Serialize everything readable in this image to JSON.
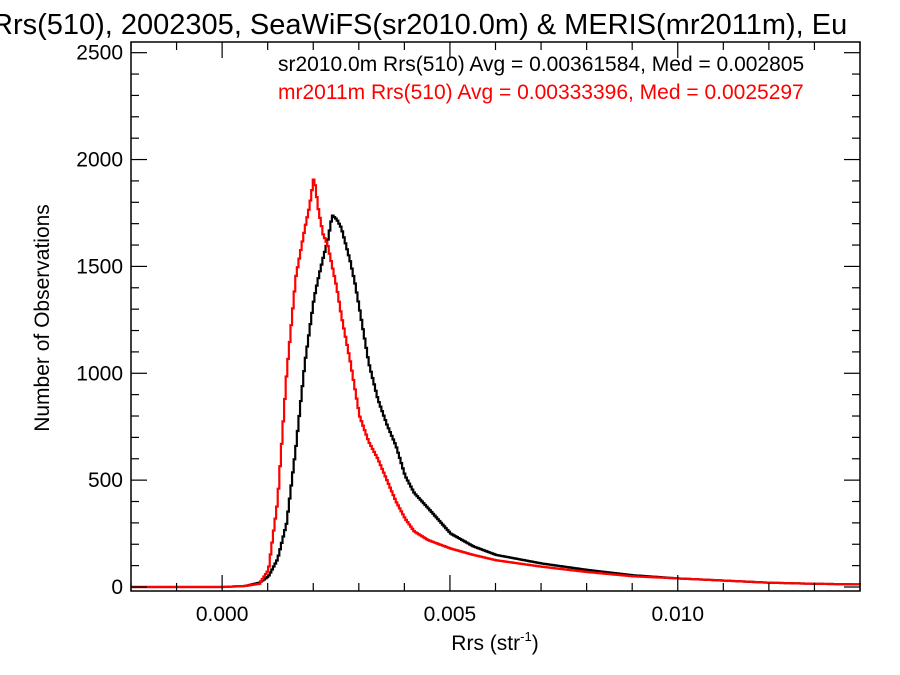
{
  "chart_data": {
    "type": "line",
    "title": "Rrs(510), 2002305, SeaWiFS(sr2010.0m) & MERIS(mr2011m), Eu",
    "xlabel": "Rrs (str",
    "xlabel_sup": "-1",
    "xlabel_close": ")",
    "ylabel": "Number of Observations",
    "xlim": [
      -0.002,
      0.014
    ],
    "ylim": [
      0,
      2550
    ],
    "x_ticks": [
      0.0,
      0.005,
      0.01
    ],
    "x_tick_labels": [
      "0.000",
      "0.005",
      "0.010"
    ],
    "y_ticks": [
      0,
      500,
      1000,
      1500,
      2000,
      2500
    ],
    "y_tick_labels": [
      "0",
      "500",
      "1000",
      "1500",
      "2000",
      "2500"
    ],
    "grid": false,
    "legend_position": "top-right",
    "annotations": [
      {
        "text": "sr2010.0m Rrs(510) Avg = 0.00361584, Med = 0.002805",
        "color": "#000000"
      },
      {
        "text": "mr2011m Rrs(510) Avg = 0.00333396, Med = 0.0025297",
        "color": "#ff0000"
      }
    ],
    "series": [
      {
        "color": "#000000",
        "x": [
          -0.002,
          0.0,
          0.0005,
          0.0008,
          0.001,
          0.0012,
          0.0014,
          0.0016,
          0.0018,
          0.002,
          0.0021,
          0.0022,
          0.0023,
          0.0024,
          0.0025,
          0.0026,
          0.0027,
          0.0028,
          0.0029,
          0.003,
          0.0032,
          0.0034,
          0.0036,
          0.0038,
          0.004,
          0.0042,
          0.0045,
          0.005,
          0.0055,
          0.006,
          0.007,
          0.008,
          0.009,
          0.01,
          0.011,
          0.012,
          0.013,
          0.014
        ],
        "y": [
          0,
          0,
          5,
          20,
          50,
          130,
          300,
          650,
          1050,
          1350,
          1450,
          1540,
          1620,
          1740,
          1720,
          1680,
          1600,
          1520,
          1420,
          1300,
          1050,
          880,
          760,
          660,
          520,
          440,
          370,
          250,
          190,
          150,
          110,
          80,
          55,
          40,
          30,
          20,
          15,
          12
        ]
      },
      {
        "color": "#ff0000",
        "x": [
          -0.002,
          0.0,
          0.0005,
          0.0008,
          0.001,
          0.0012,
          0.0014,
          0.0016,
          0.0018,
          0.0019,
          0.002,
          0.0021,
          0.0022,
          0.0023,
          0.0024,
          0.0025,
          0.0026,
          0.0027,
          0.0028,
          0.003,
          0.0032,
          0.0034,
          0.0036,
          0.0038,
          0.004,
          0.0042,
          0.0045,
          0.005,
          0.0055,
          0.006,
          0.007,
          0.008,
          0.009,
          0.01,
          0.011,
          0.012,
          0.013,
          0.014
        ],
        "y": [
          0,
          0,
          5,
          15,
          80,
          400,
          1000,
          1450,
          1680,
          1780,
          1920,
          1760,
          1650,
          1600,
          1500,
          1400,
          1270,
          1160,
          1050,
          800,
          680,
          600,
          500,
          400,
          320,
          260,
          220,
          180,
          150,
          125,
          95,
          70,
          50,
          40,
          30,
          20,
          15,
          12
        ]
      }
    ]
  }
}
